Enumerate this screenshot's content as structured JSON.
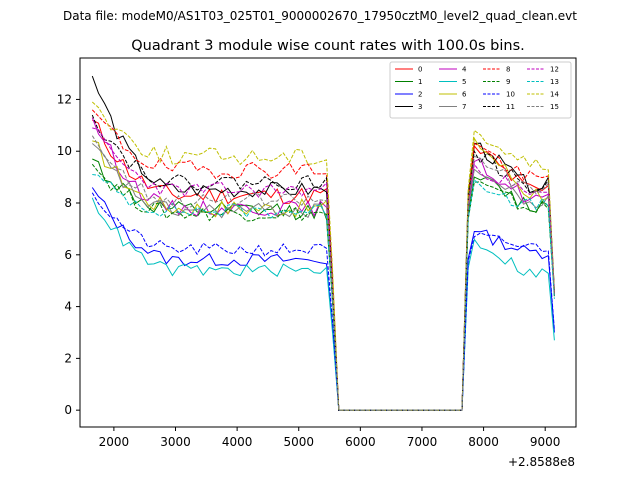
{
  "chart_data": {
    "type": "line",
    "suptitle": "Data file: modeM0/AS1T03_025T01_9000002670_17950cztM0_level2_quad_clean.evt",
    "title": "Quadrant 3 module wise count rates with 100.0s bins.",
    "xlabel": "",
    "ylabel": "",
    "x_offset_label": "+2.8588e8",
    "xlim": [
      1450,
      9500
    ],
    "ylim": [
      -0.65,
      13.6
    ],
    "x_ticks": [
      2000,
      3000,
      4000,
      5000,
      6000,
      7000,
      8000,
      9000
    ],
    "y_ticks": [
      0,
      2,
      4,
      6,
      8,
      10,
      12
    ],
    "legend": {
      "position": "top-right",
      "columns": 4
    },
    "x_segments": [
      {
        "start": 1650,
        "end": 5650,
        "step": 100
      },
      {
        "start": 5750,
        "end": 7650,
        "step": 100
      },
      {
        "start": 7750,
        "end": 9150,
        "step": 100
      }
    ],
    "series": [
      {
        "name": "0",
        "color": "#ff0000",
        "dashed": false,
        "start": 11.2,
        "plateau1": 8.3,
        "ramp2": 8.5,
        "peak2": 10.2,
        "plateau2": 8.5,
        "end": 4.4,
        "noise": 0.35,
        "seed": 11
      },
      {
        "name": "1",
        "color": "#008000",
        "dashed": false,
        "start": 9.7,
        "plateau1": 7.7,
        "ramp2": 8.4,
        "peak2": 9.0,
        "plateau2": 7.9,
        "end": 4.5,
        "noise": 0.35,
        "seed": 12
      },
      {
        "name": "2",
        "color": "#0000ff",
        "dashed": false,
        "start": 8.6,
        "plateau1": 5.8,
        "ramp2": 6.5,
        "peak2": 6.9,
        "plateau2": 6.1,
        "end": 3.0,
        "noise": 0.25,
        "seed": 13
      },
      {
        "name": "3",
        "color": "#000000",
        "dashed": false,
        "start": 12.9,
        "plateau1": 8.5,
        "ramp2": 9.3,
        "peak2": 10.3,
        "plateau2": 8.7,
        "end": 4.6,
        "noise": 0.3,
        "seed": 14
      },
      {
        "name": "4",
        "color": "#bf00bf",
        "dashed": false,
        "start": 11.3,
        "plateau1": 7.8,
        "ramp2": 8.9,
        "peak2": 9.6,
        "plateau2": 8.2,
        "end": 4.5,
        "noise": 0.3,
        "seed": 15
      },
      {
        "name": "5",
        "color": "#00bfbf",
        "dashed": false,
        "start": 8.2,
        "plateau1": 5.4,
        "ramp2": 6.1,
        "peak2": 6.6,
        "plateau2": 5.3,
        "end": 2.7,
        "noise": 0.25,
        "seed": 16
      },
      {
        "name": "6",
        "color": "#bfbf00",
        "dashed": false,
        "start": 10.4,
        "plateau1": 7.8,
        "ramp2": 9.0,
        "peak2": 10.5,
        "plateau2": 8.4,
        "end": 4.5,
        "noise": 0.35,
        "seed": 17
      },
      {
        "name": "7",
        "color": "#808080",
        "dashed": false,
        "start": 10.3,
        "plateau1": 7.7,
        "ramp2": 8.6,
        "peak2": 9.3,
        "plateau2": 8.0,
        "end": 4.5,
        "noise": 0.3,
        "seed": 18
      },
      {
        "name": "8",
        "color": "#ff0000",
        "dashed": true,
        "start": 11.6,
        "plateau1": 9.3,
        "ramp2": 9.0,
        "peak2": 10.3,
        "plateau2": 8.9,
        "end": 4.5,
        "noise": 0.35,
        "seed": 19
      },
      {
        "name": "9",
        "color": "#008000",
        "dashed": true,
        "start": 9.5,
        "plateau1": 7.6,
        "ramp2": 8.2,
        "peak2": 8.8,
        "plateau2": 7.8,
        "end": 4.4,
        "noise": 0.3,
        "seed": 20
      },
      {
        "name": "10",
        "color": "#0000ff",
        "dashed": true,
        "start": 8.4,
        "plateau1": 6.2,
        "ramp2": 6.4,
        "peak2": 6.7,
        "plateau2": 6.3,
        "end": 3.1,
        "noise": 0.25,
        "seed": 21
      },
      {
        "name": "11",
        "color": "#000000",
        "dashed": true,
        "start": 11.4,
        "plateau1": 8.8,
        "ramp2": 9.0,
        "peak2": 10.0,
        "plateau2": 8.6,
        "end": 4.5,
        "noise": 0.3,
        "seed": 22
      },
      {
        "name": "12",
        "color": "#bf00bf",
        "dashed": true,
        "start": 10.9,
        "plateau1": 8.5,
        "ramp2": 8.7,
        "peak2": 9.5,
        "plateau2": 8.3,
        "end": 4.5,
        "noise": 0.3,
        "seed": 23
      },
      {
        "name": "13",
        "color": "#00bfbf",
        "dashed": true,
        "start": 9.1,
        "plateau1": 7.7,
        "ramp2": 8.2,
        "peak2": 8.9,
        "plateau2": 7.9,
        "end": 4.3,
        "noise": 0.3,
        "seed": 24
      },
      {
        "name": "14",
        "color": "#bfbf00",
        "dashed": true,
        "start": 11.9,
        "plateau1": 9.8,
        "ramp2": 9.5,
        "peak2": 10.8,
        "plateau2": 9.5,
        "end": 4.6,
        "noise": 0.35,
        "seed": 25
      },
      {
        "name": "15",
        "color": "#808080",
        "dashed": true,
        "start": 10.6,
        "plateau1": 8.1,
        "ramp2": 8.8,
        "peak2": 9.8,
        "plateau2": 8.5,
        "end": 4.5,
        "noise": 0.3,
        "seed": 26
      }
    ]
  }
}
